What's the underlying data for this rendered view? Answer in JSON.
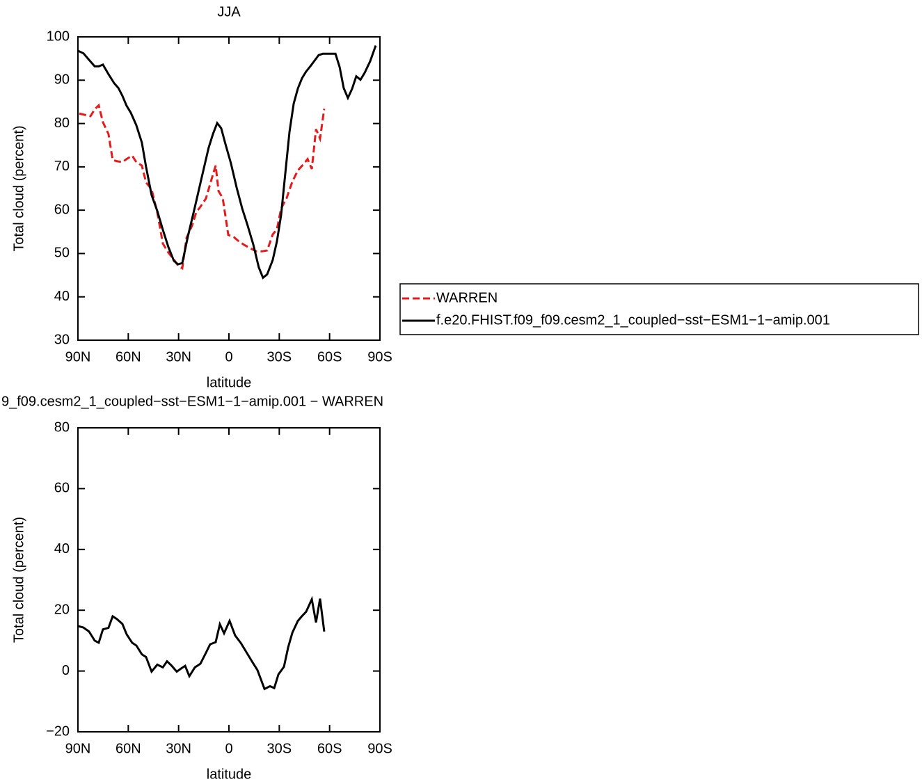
{
  "chart_data": [
    {
      "type": "line",
      "title": "JJA",
      "xlabel": "latitude",
      "ylabel": "Total cloud (percent)",
      "xlim": [
        90,
        -90
      ],
      "xticks": [
        {
          "value": 90,
          "label": "90N"
        },
        {
          "value": 60,
          "label": "60N"
        },
        {
          "value": 30,
          "label": "30N"
        },
        0,
        {
          "value": -30,
          "label": "30S"
        },
        {
          "value": -60,
          "label": "60S"
        },
        {
          "value": -90,
          "label": "90S"
        }
      ],
      "ylim": [
        30,
        100
      ],
      "yticks": [
        30,
        40,
        50,
        60,
        70,
        80,
        90,
        100
      ],
      "legend": "right",
      "series": [
        {
          "name": "WARREN",
          "color": "#e41a1c",
          "line_style": "dashed",
          "x": [
            89.2,
            85.9,
            82.5,
            80.0,
            77.6,
            75.1,
            71.8,
            69.3,
            66.8,
            63.5,
            61.0,
            57.7,
            55.2,
            51.9,
            49.4,
            46.1,
            42.7,
            39.4,
            36.1,
            32.8,
            30.3,
            27.8,
            25.3,
            22.0,
            19.5,
            17.0,
            13.7,
            10.4,
            7.9,
            6.2,
            3.7,
            0.4,
            -2.9,
            -6.2,
            -9.5,
            -12.9,
            -16.2,
            -19.5,
            -22.8,
            -26.1,
            -28.6,
            -31.1,
            -34.4,
            -37.7,
            -41.1,
            -44.4,
            -46.9,
            -49.4,
            -51.9,
            -54.3,
            -56.8
          ],
          "values": [
            82.3,
            82.0,
            81.7,
            83.3,
            84.2,
            80.3,
            77.6,
            71.6,
            71.3,
            71.1,
            71.8,
            72.6,
            71.1,
            70.3,
            66.4,
            64.8,
            59.5,
            52.3,
            50.2,
            48.6,
            47.2,
            46.6,
            53.6,
            56.4,
            59.5,
            60.8,
            62.7,
            67.1,
            70.3,
            64.4,
            62.8,
            54.3,
            53.8,
            52.7,
            51.9,
            51.2,
            50.5,
            50.5,
            50.7,
            54.4,
            55.6,
            60.4,
            62.8,
            66.5,
            69.2,
            70.6,
            71.8,
            69.5,
            78.7,
            76.5,
            83.4
          ]
        },
        {
          "name": "f.e20.FHIST.f09_f09.cesm2_1_coupled−sst−ESM1−1−amip.001",
          "color": "#000000",
          "line_style": "solid",
          "x": [
            90,
            86.7,
            83.4,
            80.0,
            77.6,
            75.1,
            71.8,
            68.4,
            65.9,
            63.5,
            61.0,
            58.5,
            55.2,
            51.9,
            49.4,
            46.1,
            42.7,
            39.4,
            36.1,
            32.8,
            30.3,
            27.8,
            24.5,
            20.3,
            16.2,
            12.1,
            9.5,
            7.0,
            4.6,
            2.1,
            -1.2,
            -4.6,
            -7.9,
            -11.2,
            -14.5,
            -17.8,
            -20.3,
            -22.8,
            -26.1,
            -28.6,
            -31.1,
            -33.6,
            -36.1,
            -38.6,
            -41.1,
            -43.6,
            -46.0,
            -48.5,
            -51.0,
            -53.5,
            -56.0,
            -61.0,
            -63.5,
            -66.0,
            -68.4,
            -70.9,
            -73.4,
            -75.9,
            -78.4,
            -80.9,
            -84.2,
            -87.5
          ],
          "values": [
            96.8,
            96.2,
            94.7,
            93.2,
            93.2,
            93.6,
            91.4,
            89.3,
            88.2,
            86.4,
            84.1,
            82.5,
            79.6,
            75.6,
            70.0,
            63.5,
            59.8,
            55.5,
            51.5,
            48.3,
            47.5,
            47.8,
            53.9,
            60.7,
            67.6,
            74.4,
            77.6,
            80.1,
            78.9,
            75.3,
            70.8,
            65.2,
            60.4,
            56.4,
            52.1,
            46.8,
            44.4,
            45.2,
            48.5,
            52.8,
            58.9,
            68.5,
            78.1,
            84.6,
            88.1,
            90.5,
            92.0,
            93.2,
            94.5,
            95.8,
            96.1,
            96.1,
            96.1,
            93.0,
            88.2,
            85.9,
            88.0,
            90.9,
            90.1,
            91.7,
            94.4,
            98.0
          ]
        }
      ]
    },
    {
      "type": "line",
      "title": "9_f09.cesm2_1_coupled−sst−ESM1−1−amip.001 − WARREN",
      "xlabel": "latitude",
      "ylabel": "Total cloud (percent)",
      "xlim": [
        90,
        -90
      ],
      "xticks": [
        {
          "value": 90,
          "label": "90N"
        },
        {
          "value": 60,
          "label": "60N"
        },
        {
          "value": 30,
          "label": "30N"
        },
        0,
        {
          "value": -30,
          "label": "30S"
        },
        {
          "value": -60,
          "label": "60S"
        },
        {
          "value": -90,
          "label": "90S"
        }
      ],
      "ylim": [
        -20,
        80
      ],
      "yticks": [
        {
          "value": -20,
          "label": "−20"
        },
        0,
        20,
        40,
        60,
        80
      ],
      "series": [
        {
          "color": "#000000",
          "line_style": "solid",
          "x": [
            90,
            86.7,
            83.4,
            80.0,
            77.6,
            75.1,
            71.8,
            69.3,
            66.8,
            63.5,
            61.0,
            57.7,
            55.2,
            51.9,
            49.4,
            46.1,
            42.7,
            39.4,
            36.9,
            34.4,
            31.1,
            28.6,
            26.1,
            23.6,
            20.3,
            17.0,
            13.7,
            11.2,
            7.9,
            5.4,
            2.9,
            -0.4,
            -3.7,
            -7.1,
            -10.4,
            -13.7,
            -17.0,
            -21.2,
            -24.5,
            -27.0,
            -29.5,
            -32.8,
            -35.3,
            -37.8,
            -41.1,
            -43.6,
            -46.0,
            -49.4,
            -51.9,
            -54.3,
            -56.8
          ],
          "values": [
            14.8,
            14.3,
            13.0,
            10.0,
            9.3,
            13.7,
            14.2,
            18.0,
            17.1,
            15.5,
            12.1,
            9.3,
            8.4,
            5.5,
            4.6,
            -0.2,
            2.1,
            1.2,
            3.2,
            1.9,
            -0.2,
            0.8,
            1.7,
            -1.7,
            1.2,
            2.4,
            6.0,
            8.8,
            9.5,
            15.4,
            12.4,
            16.5,
            11.7,
            9.2,
            6.2,
            3.2,
            0.3,
            -5.9,
            -5.0,
            -5.6,
            -1.1,
            1.4,
            7.8,
            12.6,
            16.5,
            18.1,
            19.5,
            23.6,
            16.0,
            23.8,
            13.0
          ]
        }
      ]
    }
  ]
}
